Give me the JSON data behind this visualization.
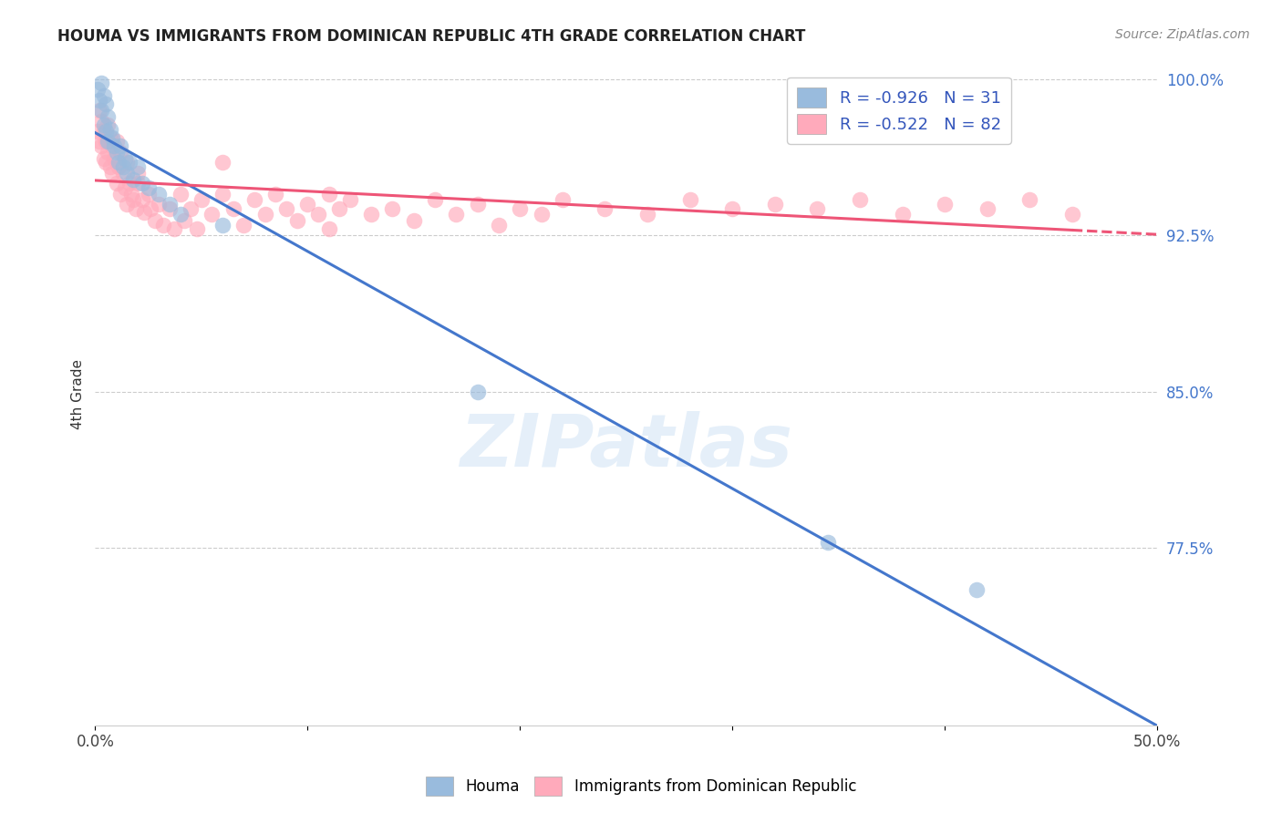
{
  "title": "HOUMA VS IMMIGRANTS FROM DOMINICAN REPUBLIC 4TH GRADE CORRELATION CHART",
  "source": "Source: ZipAtlas.com",
  "ylabel": "4th Grade",
  "xlim": [
    0.0,
    0.5
  ],
  "ylim": [
    0.69,
    1.008
  ],
  "xticks": [
    0.0,
    0.1,
    0.2,
    0.3,
    0.4,
    0.5
  ],
  "xticklabels": [
    "0.0%",
    "",
    "",
    "",
    "",
    "50.0%"
  ],
  "yticks_right": [
    1.0,
    0.925,
    0.85,
    0.775
  ],
  "yticklabels_right": [
    "100.0%",
    "92.5%",
    "85.0%",
    "77.5%"
  ],
  "color_blue": "#99BBDD",
  "color_pink": "#FFAABB",
  "color_blue_line": "#4477CC",
  "color_pink_line": "#EE5577",
  "watermark": "ZIPatlas",
  "blue_scatter_x": [
    0.001,
    0.002,
    0.003,
    0.003,
    0.004,
    0.004,
    0.005,
    0.005,
    0.006,
    0.006,
    0.007,
    0.008,
    0.009,
    0.01,
    0.011,
    0.012,
    0.013,
    0.014,
    0.015,
    0.016,
    0.018,
    0.02,
    0.022,
    0.025,
    0.03,
    0.035,
    0.04,
    0.06,
    0.18,
    0.345,
    0.415
  ],
  "blue_scatter_y": [
    0.995,
    0.99,
    0.985,
    0.998,
    0.992,
    0.978,
    0.975,
    0.988,
    0.982,
    0.97,
    0.976,
    0.972,
    0.968,
    0.965,
    0.96,
    0.968,
    0.958,
    0.962,
    0.955,
    0.96,
    0.952,
    0.958,
    0.95,
    0.948,
    0.945,
    0.94,
    0.935,
    0.93,
    0.85,
    0.778,
    0.755
  ],
  "pink_scatter_x": [
    0.001,
    0.002,
    0.002,
    0.003,
    0.003,
    0.004,
    0.004,
    0.005,
    0.005,
    0.006,
    0.006,
    0.007,
    0.007,
    0.008,
    0.008,
    0.009,
    0.01,
    0.01,
    0.011,
    0.012,
    0.012,
    0.013,
    0.014,
    0.015,
    0.015,
    0.016,
    0.017,
    0.018,
    0.019,
    0.02,
    0.022,
    0.023,
    0.025,
    0.026,
    0.028,
    0.03,
    0.032,
    0.035,
    0.037,
    0.04,
    0.042,
    0.045,
    0.048,
    0.05,
    0.055,
    0.06,
    0.065,
    0.07,
    0.075,
    0.08,
    0.085,
    0.09,
    0.095,
    0.1,
    0.105,
    0.11,
    0.115,
    0.12,
    0.13,
    0.14,
    0.15,
    0.16,
    0.17,
    0.18,
    0.19,
    0.2,
    0.21,
    0.22,
    0.24,
    0.26,
    0.28,
    0.3,
    0.32,
    0.34,
    0.36,
    0.38,
    0.4,
    0.42,
    0.44,
    0.46,
    0.02,
    0.06,
    0.11
  ],
  "pink_scatter_y": [
    0.975,
    0.97,
    0.985,
    0.968,
    0.98,
    0.975,
    0.962,
    0.97,
    0.96,
    0.965,
    0.978,
    0.958,
    0.972,
    0.968,
    0.955,
    0.962,
    0.97,
    0.95,
    0.958,
    0.965,
    0.945,
    0.955,
    0.948,
    0.96,
    0.94,
    0.95,
    0.945,
    0.942,
    0.938,
    0.95,
    0.942,
    0.936,
    0.945,
    0.938,
    0.932,
    0.94,
    0.93,
    0.938,
    0.928,
    0.945,
    0.932,
    0.938,
    0.928,
    0.942,
    0.935,
    0.945,
    0.938,
    0.93,
    0.942,
    0.935,
    0.945,
    0.938,
    0.932,
    0.94,
    0.935,
    0.928,
    0.938,
    0.942,
    0.935,
    0.938,
    0.932,
    0.942,
    0.935,
    0.94,
    0.93,
    0.938,
    0.935,
    0.942,
    0.938,
    0.935,
    0.942,
    0.938,
    0.94,
    0.938,
    0.942,
    0.935,
    0.94,
    0.938,
    0.942,
    0.935,
    0.955,
    0.96,
    0.945
  ]
}
